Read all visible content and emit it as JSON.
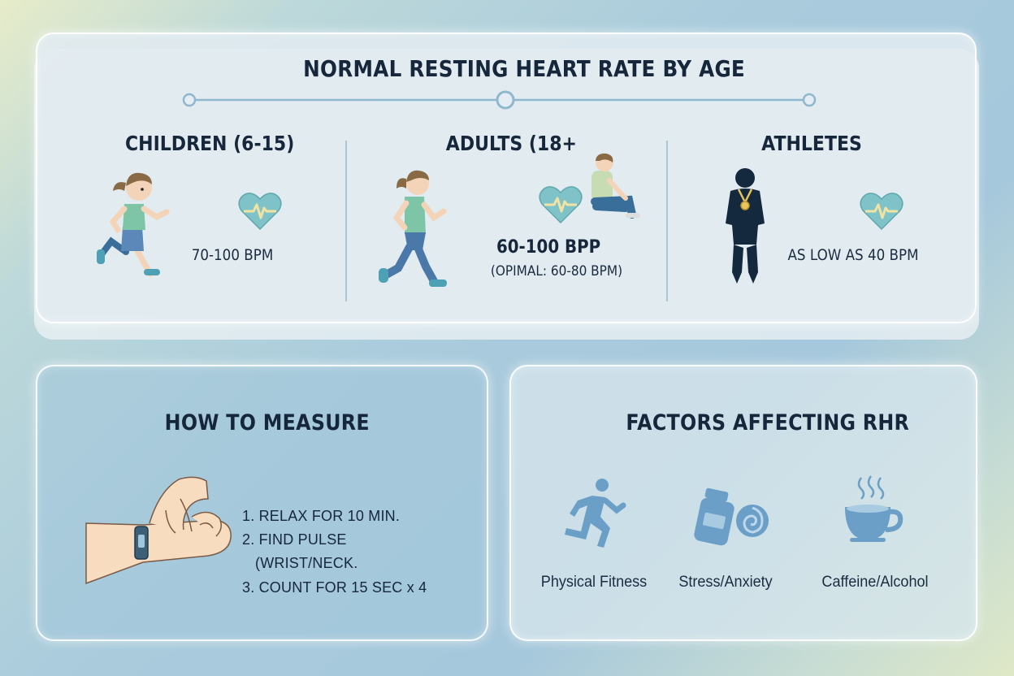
{
  "page": {
    "title": "NORMAL RESTING HEART RATE BY AGE",
    "colors": {
      "accent": "#7fbdc3",
      "heart_fill": "#7fc3c8",
      "pulse_line": "#f2e3a3",
      "dark": "#16263b",
      "icon_blue": "#6b9fc7"
    }
  },
  "age_groups": [
    {
      "title": "CHILDREN (6-15)",
      "rate": "70-100 BPM",
      "icon": "running-girl-icon"
    },
    {
      "title": "ADULTS (18+",
      "rate": "60-100 BPP",
      "note": "(OPIMAL: 60-80 BPM)",
      "icon": "running-woman-icon"
    },
    {
      "title": "ATHLETES",
      "rate": "AS LOW AS 40 BPM",
      "icon": "athlete-medal-icon"
    }
  ],
  "measure": {
    "title": "HOW TO MEASURE",
    "steps": [
      "1. RELAX FOR 10 MIN.",
      "2. FIND PULSE",
      "(WRIST/NECK.",
      "3. COUNT FOR 15 SEC x 4"
    ],
    "icon": "wrist-pulse-icon"
  },
  "factors": {
    "title": "FACTORS AFFECTING RHR",
    "items": [
      {
        "label": "Physical Fitness",
        "icon": "runner-icon"
      },
      {
        "label": "Stress/Anxiety",
        "icon": "pill-bottle-icon"
      },
      {
        "label": "Caffeine/Alcohol",
        "icon": "coffee-cup-icon"
      }
    ]
  }
}
